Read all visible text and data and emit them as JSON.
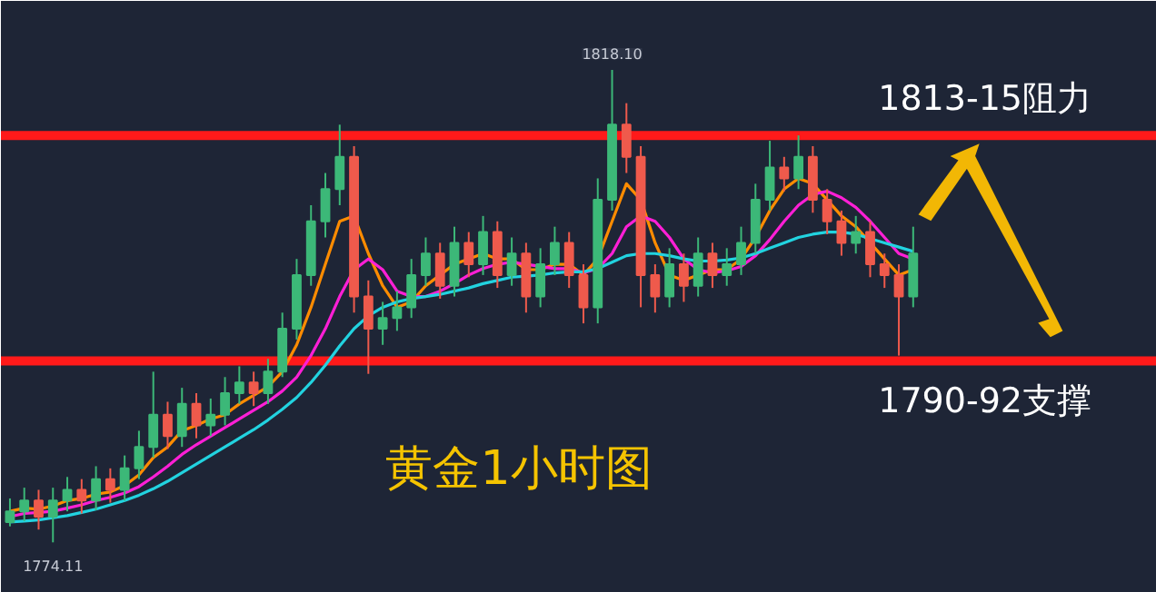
{
  "chart_data": {
    "type": "candlestick",
    "categories": [
      null,
      null,
      null,
      null,
      null,
      null,
      null,
      null,
      null,
      null,
      null,
      null,
      null,
      null,
      null,
      null,
      null,
      null,
      null,
      null,
      null,
      null,
      null,
      null,
      null,
      null,
      null,
      null,
      null,
      null,
      null,
      null,
      null,
      null,
      null,
      null,
      null,
      null,
      null,
      null,
      null,
      null,
      null,
      null,
      null,
      null,
      null,
      null,
      null,
      null,
      null,
      null,
      null,
      null,
      null,
      null,
      null,
      null,
      null,
      null,
      null,
      null,
      null,
      null
    ],
    "ohlc": [
      [
        1776,
        1778.2,
        1775.6,
        1777
      ],
      [
        1777,
        1779.2,
        1776.1,
        1778
      ],
      [
        1778,
        1779,
        1775.3,
        1776.5
      ],
      [
        1776.5,
        1779.2,
        1774.11,
        1778
      ],
      [
        1778,
        1780.2,
        1777,
        1779
      ],
      [
        1779,
        1780,
        1776.8,
        1778
      ],
      [
        1778,
        1781.2,
        1777.1,
        1780
      ],
      [
        1780,
        1781,
        1777.8,
        1779
      ],
      [
        1779,
        1782.2,
        1778,
        1781
      ],
      [
        1781,
        1784.5,
        1780,
        1783
      ],
      [
        1783,
        1790,
        1782,
        1786
      ],
      [
        1786,
        1787.2,
        1782.8,
        1784
      ],
      [
        1784,
        1788.5,
        1783,
        1787
      ],
      [
        1787,
        1788,
        1783.8,
        1785
      ],
      [
        1785,
        1787.5,
        1784,
        1786
      ],
      [
        1786,
        1789.5,
        1785,
        1788
      ],
      [
        1788,
        1790.5,
        1787,
        1789
      ],
      [
        1789,
        1790,
        1786.8,
        1788
      ],
      [
        1788,
        1791.2,
        1787,
        1790
      ],
      [
        1790,
        1795.5,
        1789.5,
        1794
      ],
      [
        1794,
        1800.5,
        1793,
        1799
      ],
      [
        1799,
        1805.5,
        1798,
        1804
      ],
      [
        1804,
        1808.5,
        1802.5,
        1807
      ],
      [
        1807,
        1813,
        1805.5,
        1810
      ],
      [
        1810,
        1811,
        1795.5,
        1797
      ],
      [
        1797,
        1798.5,
        1789.8,
        1794
      ],
      [
        1794,
        1796.5,
        1792.5,
        1795
      ],
      [
        1795,
        1797.5,
        1793.8,
        1796
      ],
      [
        1796,
        1800.5,
        1795,
        1799
      ],
      [
        1799,
        1802.5,
        1798,
        1801
      ],
      [
        1801,
        1802,
        1796.8,
        1798
      ],
      [
        1798,
        1803.5,
        1797,
        1802
      ],
      [
        1802,
        1803,
        1798.8,
        1800
      ],
      [
        1800,
        1804.5,
        1799,
        1803
      ],
      [
        1803,
        1804,
        1797.8,
        1799
      ],
      [
        1799,
        1802.5,
        1798,
        1801
      ],
      [
        1801,
        1802,
        1795.5,
        1797
      ],
      [
        1797,
        1801.5,
        1796,
        1800
      ],
      [
        1800,
        1803.5,
        1799,
        1802
      ],
      [
        1802,
        1803,
        1797.8,
        1799
      ],
      [
        1799,
        1800,
        1794.5,
        1796
      ],
      [
        1796,
        1808,
        1794.5,
        1806
      ],
      [
        1806,
        1818.1,
        1805,
        1813
      ],
      [
        1813,
        1815,
        1808.5,
        1810
      ],
      [
        1810,
        1811,
        1796,
        1799
      ],
      [
        1799,
        1800,
        1795.5,
        1797
      ],
      [
        1797,
        1801.5,
        1796,
        1800
      ],
      [
        1800,
        1801,
        1796.5,
        1798
      ],
      [
        1798,
        1802.5,
        1797,
        1801
      ],
      [
        1801,
        1802,
        1797.8,
        1799
      ],
      [
        1799,
        1801.5,
        1798,
        1800
      ],
      [
        1800,
        1803.5,
        1799,
        1802
      ],
      [
        1802,
        1807.5,
        1801,
        1806
      ],
      [
        1806,
        1811.5,
        1805,
        1809
      ],
      [
        1809,
        1810,
        1806.8,
        1808
      ],
      [
        1808,
        1812,
        1807,
        1810
      ],
      [
        1810,
        1811,
        1804.8,
        1806
      ],
      [
        1806,
        1807,
        1802.8,
        1804
      ],
      [
        1804,
        1805,
        1800.8,
        1802
      ],
      [
        1802,
        1804.5,
        1801,
        1803
      ],
      [
        1803,
        1804,
        1798.8,
        1800
      ],
      [
        1800,
        1801,
        1797.8,
        1799
      ],
      [
        1799,
        1800,
        1791.5,
        1797
      ],
      [
        1797,
        1803.5,
        1796,
        1801
      ]
    ],
    "colors": [
      "#3cb878",
      "#3cb878",
      "#ef5a4c",
      "#3cb878",
      "#3cb878",
      "#ef5a4c",
      "#3cb878",
      "#ef5a4c",
      "#3cb878",
      "#3cb878",
      "#3cb878",
      "#ef5a4c",
      "#3cb878",
      "#ef5a4c",
      "#3cb878",
      "#3cb878",
      "#3cb878",
      "#ef5a4c",
      "#3cb878",
      "#3cb878",
      "#3cb878",
      "#3cb878",
      "#3cb878",
      "#3cb878",
      "#ef5a4c",
      "#ef5a4c",
      "#3cb878",
      "#3cb878",
      "#3cb878",
      "#3cb878",
      "#ef5a4c",
      "#3cb878",
      "#ef5a4c",
      "#3cb878",
      "#ef5a4c",
      "#3cb878",
      "#ef5a4c",
      "#3cb878",
      "#3cb878",
      "#ef5a4c",
      "#ef5a4c",
      "#3cb878",
      "#3cb878",
      "#ef5a4c",
      "#ef5a4c",
      "#ef5a4c",
      "#3cb878",
      "#ef5a4c",
      "#3cb878",
      "#ef5a4c",
      "#3cb878",
      "#3cb878",
      "#3cb878",
      "#3cb878",
      "#ef5a4c",
      "#3cb878",
      "#ef5a4c",
      "#ef5a4c",
      "#ef5a4c",
      "#3cb878",
      "#ef5a4c",
      "#ef5a4c",
      "#ef5a4c",
      "#3cb878"
    ],
    "series": [
      {
        "type": "line",
        "color": "#ff8c00",
        "values": [
          1777,
          1777.3,
          1777.2,
          1777.5,
          1778,
          1778.2,
          1778.6,
          1778.8,
          1779.4,
          1780.4,
          1782,
          1783,
          1784.5,
          1785,
          1785.6,
          1786,
          1787,
          1787.8,
          1788.6,
          1790,
          1792.5,
          1796,
          1800,
          1804,
          1804.5,
          1801,
          1798,
          1796,
          1796.5,
          1798,
          1799,
          1800,
          1800.5,
          1801,
          1800.5,
          1800.5,
          1799.5,
          1799.5,
          1800,
          1800,
          1799,
          1800.5,
          1804,
          1807.5,
          1806,
          1802,
          1799,
          1798.5,
          1799,
          1799.5,
          1799.5,
          1800.5,
          1802.5,
          1805,
          1807,
          1808,
          1807.5,
          1806,
          1804.5,
          1803.5,
          1802,
          1800.5,
          1799,
          1799.5
        ]
      },
      {
        "type": "line",
        "color": "#ff1fd6",
        "values": [
          1776.5,
          1776.8,
          1776.9,
          1777,
          1777.3,
          1777.6,
          1778,
          1778.3,
          1778.7,
          1779.3,
          1780.2,
          1781.2,
          1782.3,
          1783.2,
          1784,
          1784.8,
          1785.6,
          1786.4,
          1787.2,
          1788.2,
          1789.5,
          1791.5,
          1794,
          1797,
          1799.5,
          1800.5,
          1799.5,
          1797.5,
          1797,
          1797,
          1797.5,
          1798.2,
          1799,
          1799.6,
          1800,
          1800.2,
          1800,
          1799.8,
          1799.6,
          1799.6,
          1799.2,
          1799.6,
          1801,
          1803.5,
          1804.5,
          1804,
          1802.5,
          1800.5,
          1799.5,
          1799.2,
          1799.4,
          1799.8,
          1800.8,
          1802.3,
          1804,
          1805.5,
          1806.5,
          1806.8,
          1806.2,
          1805.3,
          1804,
          1802.5,
          1801,
          1800.5
        ]
      },
      {
        "type": "line",
        "color": "#22d3e0",
        "values": [
          1776,
          1776.1,
          1776.2,
          1776.4,
          1776.6,
          1776.9,
          1777.2,
          1777.6,
          1778,
          1778.5,
          1779.1,
          1779.8,
          1780.6,
          1781.4,
          1782.2,
          1783,
          1783.8,
          1784.6,
          1785.5,
          1786.5,
          1787.6,
          1789,
          1790.6,
          1792.4,
          1794,
          1795.2,
          1796,
          1796.5,
          1796.8,
          1797,
          1797.2,
          1797.5,
          1797.8,
          1798.2,
          1798.5,
          1798.8,
          1798.9,
          1799,
          1799.2,
          1799.3,
          1799.3,
          1799.6,
          1800.2,
          1800.8,
          1801,
          1801,
          1800.8,
          1800.5,
          1800.3,
          1800.3,
          1800.4,
          1800.6,
          1801,
          1801.5,
          1802,
          1802.5,
          1802.8,
          1803,
          1803,
          1802.8,
          1802.4,
          1802,
          1801.6,
          1801.2
        ]
      }
    ],
    "ref_lines": [
      {
        "axis": "y",
        "value": 1812,
        "label": "1813-15阻力",
        "color": "#ff1a1a"
      },
      {
        "axis": "y",
        "value": 1791,
        "label": "1790-92支撑",
        "color": "#ff1a1a"
      }
    ],
    "annotations": [
      {
        "text": "1818.10",
        "y": 1818.1
      },
      {
        "text": "1774.11",
        "y": 1774.11
      },
      "黄金1小时图"
    ],
    "tick_labels": false,
    "grid": false
  }
}
